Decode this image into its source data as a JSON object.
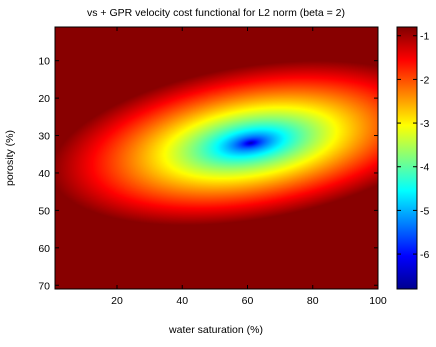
{
  "chart_data": {
    "type": "heatmap",
    "title": "vs + GPR velocity cost functional for L2 norm (beta = 2)",
    "xlabel": "water saturation (%)",
    "ylabel": "porosity (%)",
    "xlim": [
      1,
      100
    ],
    "ylim": [
      1,
      71
    ],
    "y_axis_reversed": true,
    "x_ticks": [
      "20",
      "40",
      "60",
      "80",
      "100"
    ],
    "x_tick_values": [
      20,
      40,
      60,
      80,
      100
    ],
    "y_ticks": [
      "10",
      "20",
      "30",
      "40",
      "50",
      "60",
      "70"
    ],
    "y_tick_values": [
      10,
      20,
      30,
      40,
      50,
      60,
      70
    ],
    "colorbar": {
      "range": [
        -6.8,
        -0.8
      ],
      "ticks": [
        "-1",
        "-2",
        "-3",
        "-4",
        "-5",
        "-6"
      ],
      "tick_values": [
        -1,
        -2,
        -3,
        -4,
        -5,
        -6
      ],
      "colormap": "jet"
    },
    "field": {
      "minimum": {
        "x": 61,
        "y": 32,
        "value": -6.8
      },
      "rim_value": -1.0,
      "description_values": {
        "upper_left": -2.0,
        "lower_right": -1.6
      }
    },
    "grid": false
  }
}
